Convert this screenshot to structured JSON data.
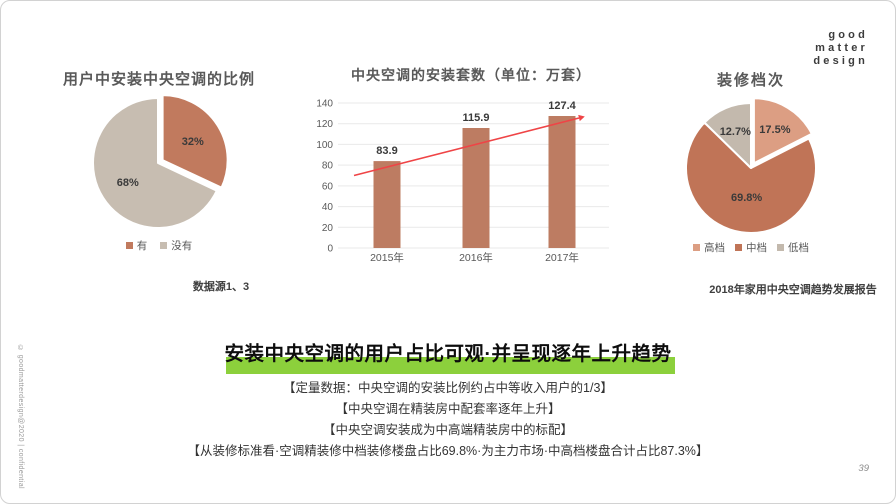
{
  "slide": {
    "page_number": "39",
    "watermark": "© goodmatterdesign@2020 | confidential",
    "logo_lines": [
      "good",
      "matter",
      "design"
    ]
  },
  "headline": {
    "text": "安装中央空调的用户占比可观·并呈现逐年上升趋势",
    "highlight_color": "#8CD03C"
  },
  "bullets": [
    "【定量数据：中央空调的安装比例约占中等收入用户的1/3】",
    "【中央空调在精装房中配套率逐年上升】",
    "【中央空调安装成为中高端精装房中的标配】",
    "【从装修标准看·空调精装修中档装修楼盘占比69.8%·为主力市场·中高档楼盘合计占比87.3%】"
  ],
  "chart_data": [
    {
      "type": "pie",
      "title": "用户中安装中央空调的比例",
      "slices": [
        {
          "label": "有",
          "value": 32,
          "color": "#C17A5E",
          "explode": true,
          "label_r": 0.55
        },
        {
          "label": "没有",
          "value": 68,
          "color": "#C7BDB1",
          "explode": false,
          "label_r": 0.55
        }
      ],
      "legend_position": "bottom",
      "label_format": "percent",
      "source_note": "数据源1、3"
    },
    {
      "type": "bar",
      "title": "中央空调的安装套数（单位：万套）",
      "categories": [
        "2015年",
        "2016年",
        "2017年"
      ],
      "values": [
        83.9,
        115.9,
        127.4
      ],
      "ylim": [
        0,
        140
      ],
      "y_step": 20,
      "grid": true,
      "bar_color": "#BD7C62",
      "label_color": "#3a3a3a",
      "axis_color": "#595959",
      "trendline": {
        "color": "#EF4446",
        "start_value": 70,
        "end_value": 125.5
      }
    },
    {
      "type": "pie",
      "title": "装修档次",
      "slices": [
        {
          "label": "高档",
          "value": 17.5,
          "color": "#DC9E83",
          "explode": true,
          "label_r": 0.62
        },
        {
          "label": "中档",
          "value": 69.8,
          "color": "#C07457",
          "explode": false,
          "label_r": 0.45
        },
        {
          "label": "低档",
          "value": 12.7,
          "color": "#C3B9AD",
          "explode": false,
          "label_r": 0.62
        }
      ],
      "legend_position": "bottom",
      "label_format": "percent",
      "source_note": "2018年家用中央空调趋势发展报告"
    }
  ]
}
